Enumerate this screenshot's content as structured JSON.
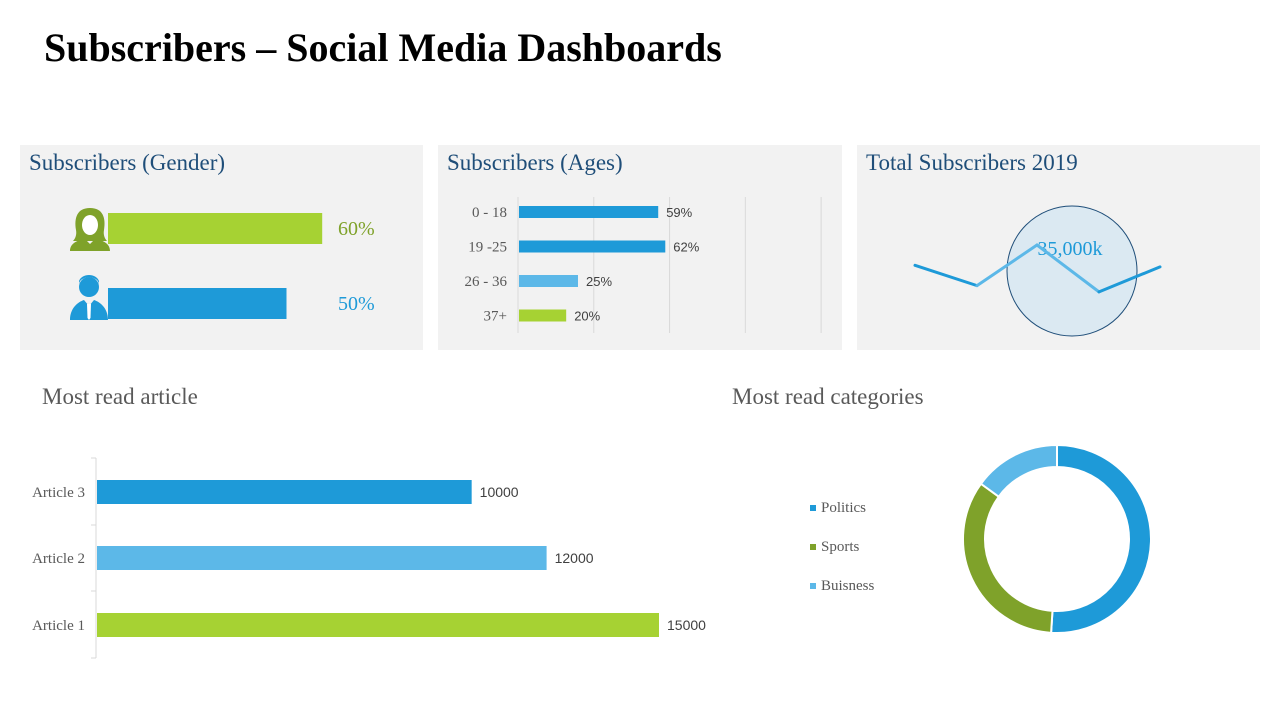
{
  "title": "Subscribers – Social Media Dashboards",
  "colors": {
    "green": "#a6d233",
    "blue": "#1e9ad8",
    "light_blue": "#5cb8e8",
    "olive": "#7fa22a",
    "navy": "#1f4e79",
    "panel_bg": "#f2f2f2"
  },
  "gender_panel": {
    "title": "Subscribers (Gender)",
    "female_icon": "female-user-icon",
    "male_icon": "male-user-icon"
  },
  "ages_panel": {
    "title": "Subscribers (Ages)"
  },
  "total_panel": {
    "title": "Total Subscribers 2019",
    "value": "35,000k"
  },
  "articles_section": {
    "title": "Most read article"
  },
  "categories_section": {
    "title": "Most read categories"
  },
  "chart_data": [
    {
      "id": "gender",
      "type": "bar",
      "orientation": "horizontal",
      "categories": [
        "Female",
        "Male"
      ],
      "values": [
        60,
        50
      ],
      "labels": [
        "60%",
        "50%"
      ],
      "colors": [
        "#a6d233",
        "#1e9ad8"
      ],
      "xlim": [
        0,
        100
      ]
    },
    {
      "id": "ages",
      "type": "bar",
      "orientation": "horizontal",
      "categories": [
        "0 - 18",
        "19 -25",
        "26 - 36",
        "37+"
      ],
      "values": [
        59,
        62,
        25,
        20
      ],
      "labels": [
        "59%",
        "62%",
        "25%",
        "20%"
      ],
      "colors": [
        "#1e9ad8",
        "#1e9ad8",
        "#5cb8e8",
        "#a6d233"
      ],
      "xlim": [
        0,
        100
      ],
      "grid": true
    },
    {
      "id": "total",
      "type": "line",
      "values": [
        35,
        22,
        48,
        18,
        34
      ],
      "ylim": [
        0,
        60
      ]
    },
    {
      "id": "articles",
      "type": "bar",
      "orientation": "horizontal",
      "categories": [
        "Article 3",
        "Article 2",
        "Article 1"
      ],
      "values": [
        10000,
        12000,
        15000
      ],
      "labels": [
        "10000",
        "12000",
        "15000"
      ],
      "colors": [
        "#1e9ad8",
        "#5cb8e8",
        "#a6d233"
      ],
      "xlim": [
        0,
        18000
      ]
    },
    {
      "id": "categories",
      "type": "pie",
      "donut": true,
      "categories": [
        "Politics",
        "Sports",
        "Buisness"
      ],
      "values": [
        51,
        34,
        15
      ],
      "colors": [
        "#1e9ad8",
        "#7fa22a",
        "#5cb8e8"
      ],
      "legend": "left"
    }
  ]
}
